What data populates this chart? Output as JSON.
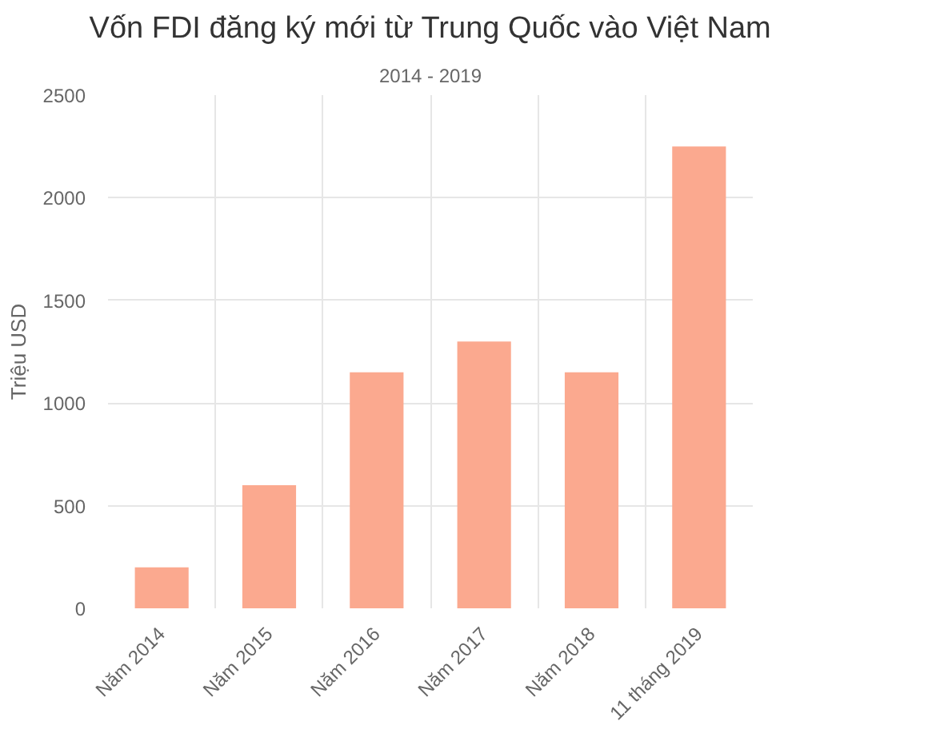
{
  "chart_data": {
    "type": "bar",
    "title": "Vốn FDI đăng ký mới từ Trung Quốc vào Việt Nam",
    "subtitle": "2014 - 2019",
    "ylabel": "Triệu USD",
    "categories": [
      "Năm 2014",
      "Năm 2015",
      "Năm 2016",
      "Năm 2017",
      "Năm 2018",
      "11 tháng 2019"
    ],
    "values": [
      200,
      600,
      1150,
      1300,
      1150,
      2250
    ],
    "color": "#fba98f",
    "ylim": [
      0,
      2500
    ],
    "yticks": [
      0,
      500,
      1000,
      1500,
      2000,
      2500
    ],
    "grid": true
  }
}
